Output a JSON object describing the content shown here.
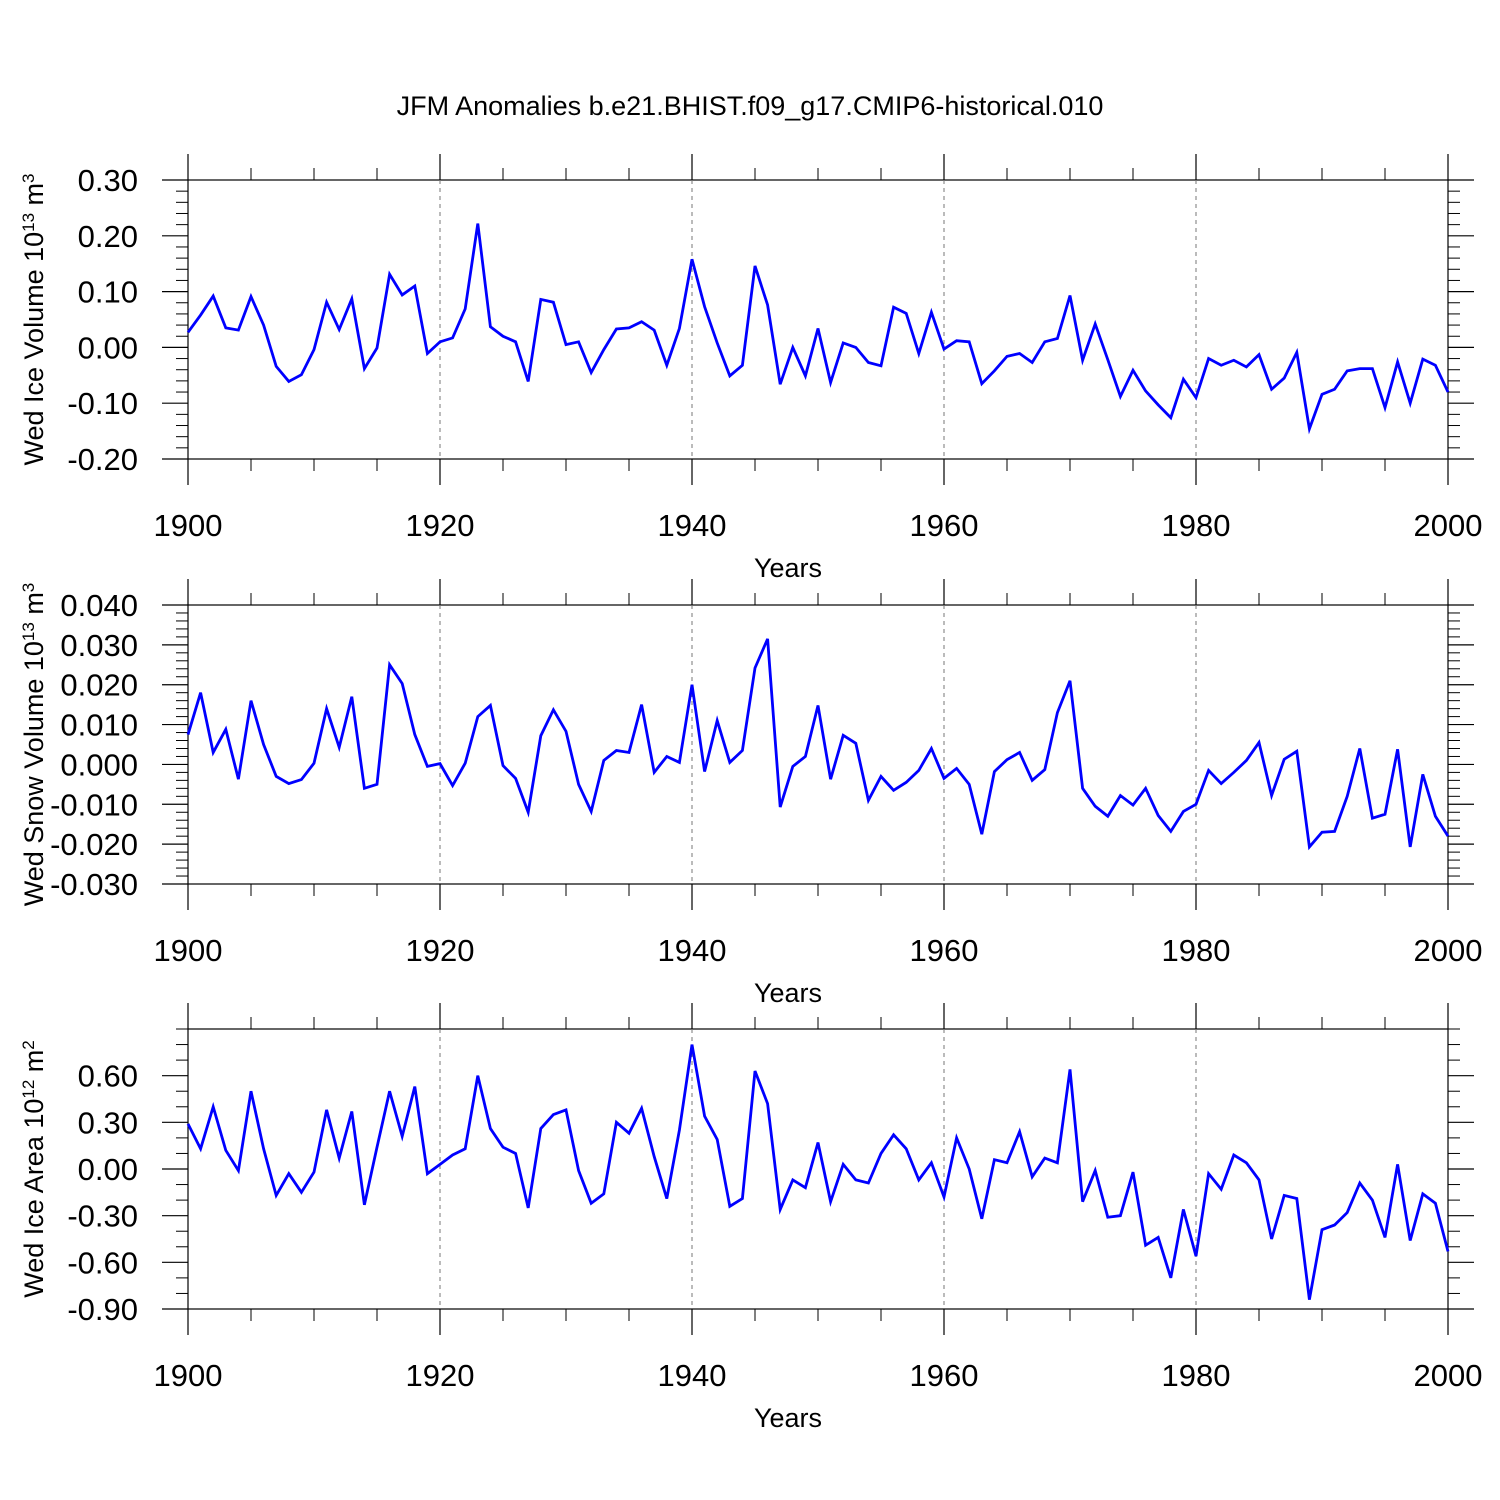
{
  "figure": {
    "title": "JFM Anomalies b.e21.BHIST.f09_g17.CMIP6-historical.010",
    "line_color": "#0000ff"
  },
  "chart_data": [
    {
      "type": "line",
      "ylabel_main": "Wed Ice Volume 10",
      "ylabel_exp": "13",
      "ylabel_unit": " m",
      "ylabel_unit_exp": "3",
      "xlabel": "Years",
      "xlim": [
        1900,
        2000
      ],
      "ylim": [
        -0.2,
        0.3
      ],
      "yticks": [
        -0.2,
        -0.1,
        0.0,
        0.1,
        0.2,
        0.3
      ],
      "ytick_labels": [
        "-0.20",
        "-0.10",
        "0.00",
        "0.10",
        "0.20",
        "0.30"
      ],
      "yminor_step": 0.02,
      "xticks": [
        1900,
        1920,
        1940,
        1960,
        1980,
        2000
      ],
      "xtick_labels": [
        "1900",
        "1920",
        "1940",
        "1960",
        "1980",
        "2000"
      ],
      "x_start": 1900,
      "values": [
        0.027,
        0.058,
        0.092,
        0.035,
        0.031,
        0.091,
        0.04,
        -0.034,
        -0.061,
        -0.049,
        -0.004,
        0.081,
        0.032,
        0.087,
        -0.038,
        -0.001,
        0.131,
        0.094,
        0.11,
        -0.011,
        0.01,
        0.017,
        0.069,
        0.222,
        0.037,
        0.02,
        0.01,
        -0.061,
        0.086,
        0.081,
        0.005,
        0.01,
        -0.045,
        -0.004,
        0.033,
        0.035,
        0.046,
        0.031,
        -0.032,
        0.034,
        0.158,
        0.073,
        0.008,
        -0.051,
        -0.032,
        0.146,
        0.076,
        -0.066,
        0.0,
        -0.051,
        0.034,
        -0.063,
        0.008,
        0.0,
        -0.027,
        -0.033,
        0.072,
        0.061,
        -0.011,
        0.063,
        -0.003,
        0.012,
        0.01,
        -0.065,
        -0.042,
        -0.016,
        -0.011,
        -0.027,
        0.01,
        0.016,
        0.093,
        -0.023,
        0.042,
        -0.022,
        -0.088,
        -0.041,
        -0.078,
        -0.103,
        -0.126,
        -0.057,
        -0.09,
        -0.02,
        -0.032,
        -0.023,
        -0.035,
        -0.013,
        -0.075,
        -0.055,
        -0.009,
        -0.146,
        -0.084,
        -0.075,
        -0.042,
        -0.038,
        -0.038,
        -0.108,
        -0.026,
        -0.1,
        -0.021,
        -0.032,
        -0.08
      ]
    },
    {
      "type": "line",
      "ylabel_main": "Wed Snow Volume 10",
      "ylabel_exp": "13",
      "ylabel_unit": " m",
      "ylabel_unit_exp": "3",
      "xlabel": "Years",
      "xlim": [
        1900,
        2000
      ],
      "ylim": [
        -0.03,
        0.04
      ],
      "yticks": [
        -0.03,
        -0.02,
        -0.01,
        0.0,
        0.01,
        0.02,
        0.03,
        0.04
      ],
      "ytick_labels": [
        "-0.030",
        "-0.020",
        "-0.010",
        "0.000",
        "0.010",
        "0.020",
        "0.030",
        "0.040"
      ],
      "yminor_step": 0.002,
      "xticks": [
        1900,
        1920,
        1940,
        1960,
        1980,
        2000
      ],
      "xtick_labels": [
        "1900",
        "1920",
        "1940",
        "1960",
        "1980",
        "2000"
      ],
      "x_start": 1900,
      "values": [
        0.0075,
        0.018,
        0.003,
        0.0088,
        -0.0037,
        0.016,
        0.005,
        -0.003,
        -0.0048,
        -0.0038,
        0.0003,
        0.014,
        0.0043,
        0.017,
        -0.006,
        -0.005,
        0.025,
        0.0203,
        0.0075,
        -0.0005,
        0.0002,
        -0.0053,
        0.0003,
        0.012,
        0.0148,
        -0.0003,
        -0.0035,
        -0.012,
        0.0072,
        0.0137,
        0.0083,
        -0.005,
        -0.0118,
        0.001,
        0.0035,
        0.003,
        0.015,
        -0.002,
        0.002,
        0.0005,
        0.02,
        -0.0018,
        0.011,
        0.0005,
        0.0035,
        0.0242,
        0.0315,
        -0.0107,
        -0.0005,
        0.002,
        0.0148,
        -0.0037,
        0.0073,
        0.0053,
        -0.009,
        -0.003,
        -0.0065,
        -0.0045,
        -0.0015,
        0.004,
        -0.0035,
        -0.001,
        -0.005,
        -0.0175,
        -0.0018,
        0.0012,
        0.003,
        -0.004,
        -0.0013,
        0.013,
        0.021,
        -0.006,
        -0.0105,
        -0.013,
        -0.0078,
        -0.0102,
        -0.006,
        -0.0128,
        -0.0168,
        -0.0118,
        -0.01,
        -0.0015,
        -0.0048,
        -0.002,
        0.001,
        0.0055,
        -0.0078,
        0.0013,
        0.0033,
        -0.0207,
        -0.017,
        -0.0168,
        -0.008,
        0.004,
        -0.0135,
        -0.0125,
        0.0038,
        -0.0207,
        -0.0025,
        -0.013,
        -0.018
      ]
    },
    {
      "type": "line",
      "ylabel_main": "Wed Ice Area 10",
      "ylabel_exp": "12",
      "ylabel_unit": " m",
      "ylabel_unit_exp": "2",
      "xlabel": "Years",
      "xlim": [
        1900,
        2000
      ],
      "ylim": [
        -0.9,
        0.9
      ],
      "yticks": [
        -0.9,
        -0.6,
        -0.3,
        0.0,
        0.3,
        0.6
      ],
      "ytick_labels": [
        "-0.90",
        "-0.60",
        "-0.30",
        "0.00",
        "0.30",
        "0.60"
      ],
      "yminor_step": 0.1,
      "xticks": [
        1900,
        1920,
        1940,
        1960,
        1980,
        2000
      ],
      "xtick_labels": [
        "1900",
        "1920",
        "1940",
        "1960",
        "1980",
        "2000"
      ],
      "x_start": 1900,
      "values": [
        0.29,
        0.13,
        0.4,
        0.12,
        -0.01,
        0.5,
        0.13,
        -0.17,
        -0.03,
        -0.15,
        -0.02,
        0.38,
        0.07,
        0.37,
        -0.23,
        0.14,
        0.5,
        0.21,
        0.53,
        -0.03,
        0.03,
        0.09,
        0.13,
        0.6,
        0.26,
        0.14,
        0.1,
        -0.25,
        0.26,
        0.35,
        0.38,
        -0.01,
        -0.22,
        -0.16,
        0.3,
        0.23,
        0.39,
        0.08,
        -0.19,
        0.25,
        0.8,
        0.34,
        0.19,
        -0.24,
        -0.19,
        0.63,
        0.42,
        -0.26,
        -0.07,
        -0.12,
        0.17,
        -0.21,
        0.03,
        -0.07,
        -0.09,
        0.1,
        0.22,
        0.13,
        -0.07,
        0.04,
        -0.18,
        0.2,
        0.0,
        -0.32,
        0.06,
        0.04,
        0.24,
        -0.05,
        0.07,
        0.04,
        0.64,
        -0.21,
        -0.01,
        -0.31,
        -0.3,
        -0.02,
        -0.49,
        -0.44,
        -0.7,
        -0.26,
        -0.56,
        -0.03,
        -0.13,
        0.09,
        0.04,
        -0.07,
        -0.45,
        -0.17,
        -0.19,
        -0.84,
        -0.39,
        -0.36,
        -0.28,
        -0.09,
        -0.2,
        -0.44,
        0.03,
        -0.46,
        -0.16,
        -0.22,
        -0.53
      ]
    }
  ]
}
